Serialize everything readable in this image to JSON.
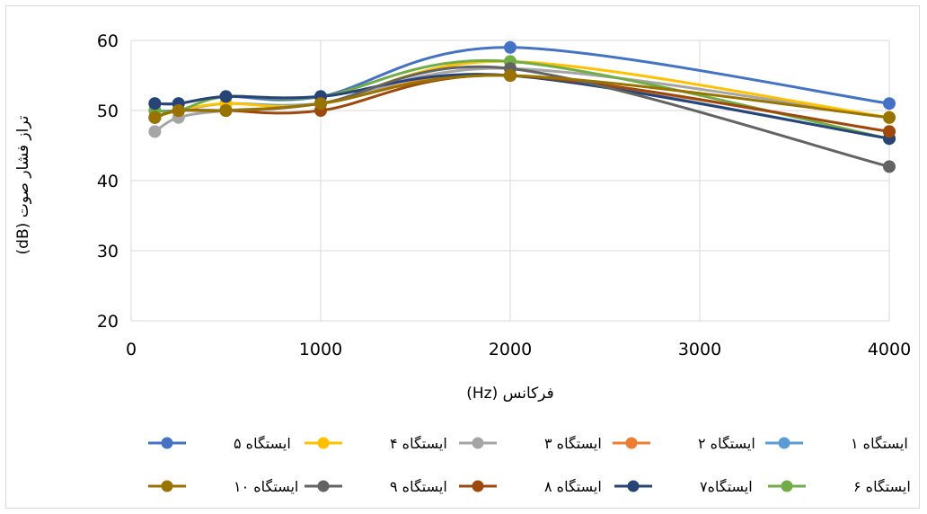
{
  "chart_data": {
    "type": "line",
    "title": "",
    "xlabel": "فرکانس (Hz)",
    "ylabel": "تراز فشار صوت (dB)",
    "xlim": [
      0,
      4000
    ],
    "ylim": [
      20,
      60
    ],
    "xticks": [
      0,
      1000,
      2000,
      3000,
      4000
    ],
    "yticks": [
      20,
      30,
      40,
      50,
      60
    ],
    "grid": true,
    "smooth": true,
    "legend_position": "bottom",
    "x": [
      125,
      250,
      500,
      1000,
      2000,
      4000
    ],
    "series": [
      {
        "name": "ایستگاه ۱",
        "color": "#5b9bd5",
        "values": [
          50,
          50,
          51,
          51,
          55,
          46
        ]
      },
      {
        "name": "ایستگاه ۲",
        "color": "#ed7d31",
        "values": [
          49,
          50,
          50,
          51,
          55,
          47
        ]
      },
      {
        "name": "ایستگاه ۳",
        "color": "#a5a5a5",
        "values": [
          47,
          49,
          50,
          51,
          56,
          49
        ]
      },
      {
        "name": "ایستگاه ۴",
        "color": "#ffc000",
        "values": [
          49,
          50,
          51,
          51,
          57,
          49
        ]
      },
      {
        "name": "ایستگاه ۵",
        "color": "#4472c4",
        "values": [
          51,
          51,
          52,
          52,
          59,
          51
        ]
      },
      {
        "name": "ایستگاه ۶",
        "color": "#70ad47",
        "values": [
          50,
          50,
          52,
          52,
          57,
          46
        ]
      },
      {
        "name": "ایستگاه۷",
        "color": "#264478",
        "values": [
          51,
          51,
          52,
          52,
          55,
          46
        ]
      },
      {
        "name": "ایستگاه ۸",
        "color": "#9e480e",
        "values": [
          49,
          50,
          50,
          50,
          55,
          47
        ]
      },
      {
        "name": "ایستگاه ۹",
        "color": "#636363",
        "values": [
          49,
          50,
          50,
          51,
          56,
          42
        ]
      },
      {
        "name": "ایستگاه ۱۰",
        "color": "#997300",
        "values": [
          49,
          50,
          50,
          51,
          55,
          49
        ]
      }
    ]
  }
}
